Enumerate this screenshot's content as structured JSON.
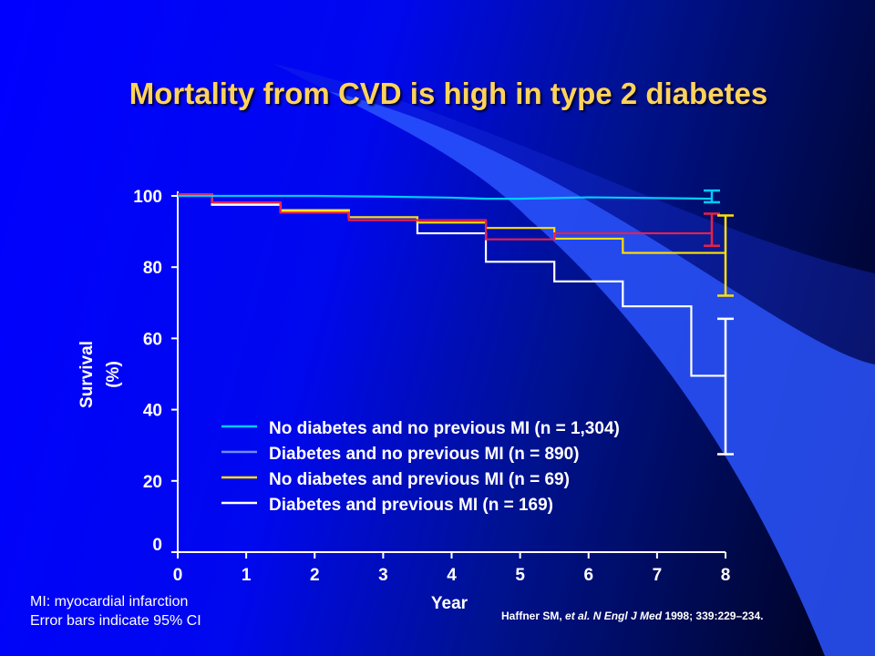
{
  "slide": {
    "title": "Mortality from CVD is high in type 2 diabetes",
    "footnotes": [
      "MI: myocardial infarction",
      "Error bars indicate 95% CI"
    ],
    "citation": {
      "authors": "Haffner SM, ",
      "etal": "et al.",
      "journal": "N Engl J Med",
      "details": " 1998; 339:229–234."
    }
  },
  "chart_data": {
    "type": "line",
    "subtype": "kaplan-meier step",
    "ylabel_line1": "Survival",
    "ylabel_line2": "(%)",
    "xlabel": "Year",
    "xlim": [
      0,
      8
    ],
    "ylim": [
      0,
      100
    ],
    "xticks": [
      "0",
      "1",
      "2",
      "3",
      "4",
      "5",
      "6",
      "7",
      "8"
    ],
    "yticks": [
      "0",
      "20",
      "40",
      "60",
      "80",
      "100"
    ],
    "grid": false,
    "legend_position": "bottom-left inside plot",
    "series": [
      {
        "name": "No diabetes and no previous MI (n = 1,304)",
        "color": "#00ccff",
        "style": "smooth",
        "points": [
          [
            0,
            100
          ],
          [
            1,
            100
          ],
          [
            2,
            100
          ],
          [
            3,
            99.8
          ],
          [
            4,
            99.5
          ],
          [
            4.5,
            99.2
          ],
          [
            5,
            99.2
          ],
          [
            6,
            99.6
          ],
          [
            7,
            99.4
          ],
          [
            7.8,
            99.2
          ]
        ],
        "ci": {
          "x": 7.8,
          "lower": 98.2,
          "upper": 101.5
        }
      },
      {
        "name": "Diabetes and no previous MI (n = 890)",
        "color": "#e8204a",
        "legend_color": "#6f8cff",
        "style": "step",
        "points": [
          [
            0,
            100.5
          ],
          [
            0.5,
            98.2
          ],
          [
            1.5,
            95.3
          ],
          [
            2.5,
            93.2
          ],
          [
            3.5,
            93.2
          ],
          [
            4.5,
            87.8
          ],
          [
            5.5,
            89.5
          ],
          [
            6.5,
            89.5
          ],
          [
            7.8,
            89.5
          ]
        ],
        "ci": {
          "x": 7.8,
          "lower": 86,
          "upper": 95
        }
      },
      {
        "name": "No diabetes and previous MI (n = 69)",
        "color": "#ffe000",
        "style": "step",
        "points": [
          [
            0,
            100.5
          ],
          [
            0.5,
            98
          ],
          [
            1.5,
            96
          ],
          [
            2.5,
            94
          ],
          [
            3.5,
            92.5
          ],
          [
            4.5,
            91
          ],
          [
            5.5,
            88
          ],
          [
            6.5,
            84
          ],
          [
            8,
            84
          ]
        ],
        "ci": {
          "x": 8,
          "lower": 72,
          "upper": 94.5
        }
      },
      {
        "name": "Diabetes and previous MI (n = 169)",
        "color": "#ffffff",
        "style": "step",
        "points": [
          [
            0,
            100.5
          ],
          [
            0.5,
            97.5
          ],
          [
            1.5,
            95.5
          ],
          [
            2.5,
            94
          ],
          [
            3.5,
            89.5
          ],
          [
            4.5,
            81.5
          ],
          [
            5.5,
            76
          ],
          [
            6.5,
            69
          ],
          [
            7.5,
            49.5
          ],
          [
            8,
            49.5
          ]
        ],
        "ci": {
          "x": 8,
          "lower": 27.5,
          "upper": 65.5
        }
      }
    ]
  }
}
